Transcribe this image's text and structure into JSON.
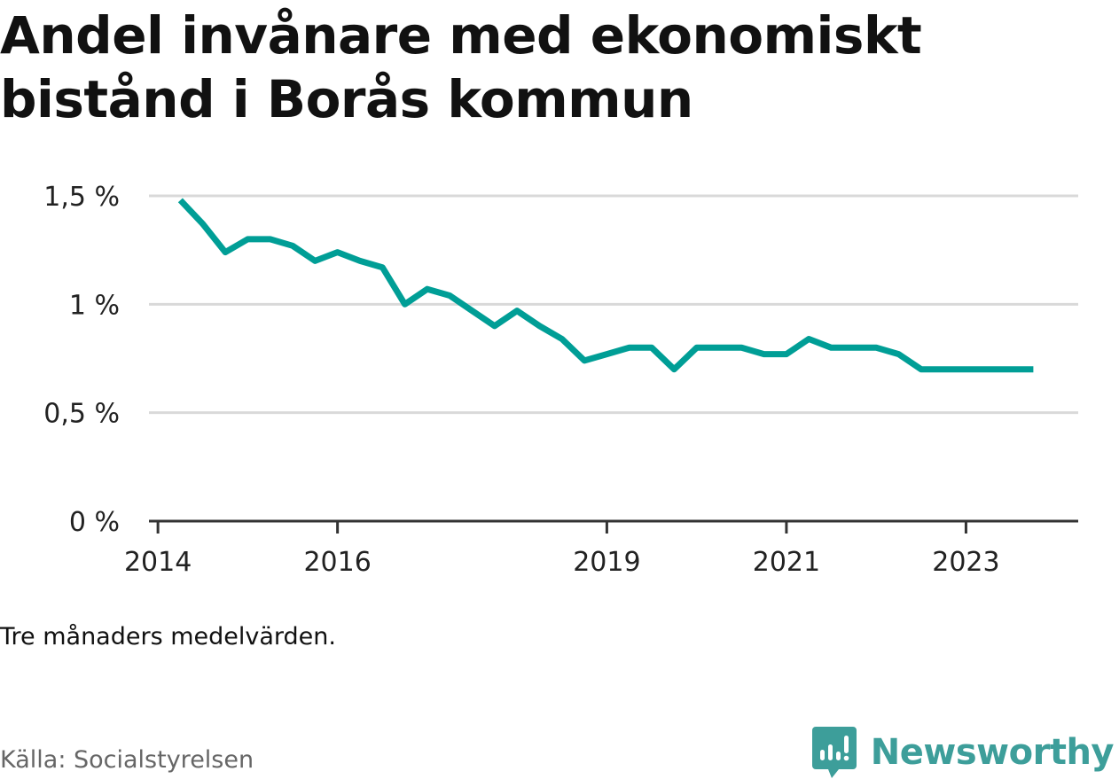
{
  "title": "Andel invånare med ekonomiskt bistånd i Borås kommun",
  "note": "Tre månaders medelvärden.",
  "source": "Källa: Socialstyrelsen",
  "brand": {
    "name": "Newsworthy",
    "icon": "newsworthy-logo-icon",
    "color": "#3d9e9a"
  },
  "chart_data": {
    "type": "line",
    "series": [
      {
        "color": "#009e96",
        "x": [
          2014.25,
          2014.5,
          2014.75,
          2015.0,
          2015.25,
          2015.5,
          2015.75,
          2016.0,
          2016.25,
          2016.5,
          2016.75,
          2017.0,
          2017.25,
          2017.5,
          2017.75,
          2018.0,
          2018.25,
          2018.5,
          2018.75,
          2019.0,
          2019.25,
          2019.5,
          2019.75,
          2020.0,
          2020.25,
          2020.5,
          2020.75,
          2021.0,
          2021.25,
          2021.5,
          2021.75,
          2022.0,
          2022.25,
          2022.5,
          2022.75,
          2023.0,
          2023.25,
          2023.5,
          2023.75
        ],
        "values": [
          1.48,
          1.37,
          1.24,
          1.3,
          1.3,
          1.27,
          1.2,
          1.24,
          1.2,
          1.17,
          1.0,
          1.07,
          1.04,
          0.97,
          0.9,
          0.97,
          0.9,
          0.84,
          0.74,
          0.77,
          0.8,
          0.8,
          0.7,
          0.8,
          0.8,
          0.8,
          0.77,
          0.77,
          0.84,
          0.8,
          0.8,
          0.8,
          0.77,
          0.7,
          0.7,
          0.7,
          0.7,
          0.7,
          0.7
        ]
      }
    ],
    "x_ticks": [
      2014,
      2016,
      2019,
      2021,
      2023
    ],
    "x_tick_labels": [
      "2014",
      "2016",
      "2019",
      "2021",
      "2023"
    ],
    "y_ticks": [
      0,
      0.5,
      1,
      1.5
    ],
    "y_tick_labels": [
      "0 %",
      "0,5 %",
      "1 %",
      "1,5 %"
    ],
    "xlim": [
      2013.9,
      2024.25
    ],
    "ylim": [
      0,
      1.5
    ],
    "grid": true
  }
}
